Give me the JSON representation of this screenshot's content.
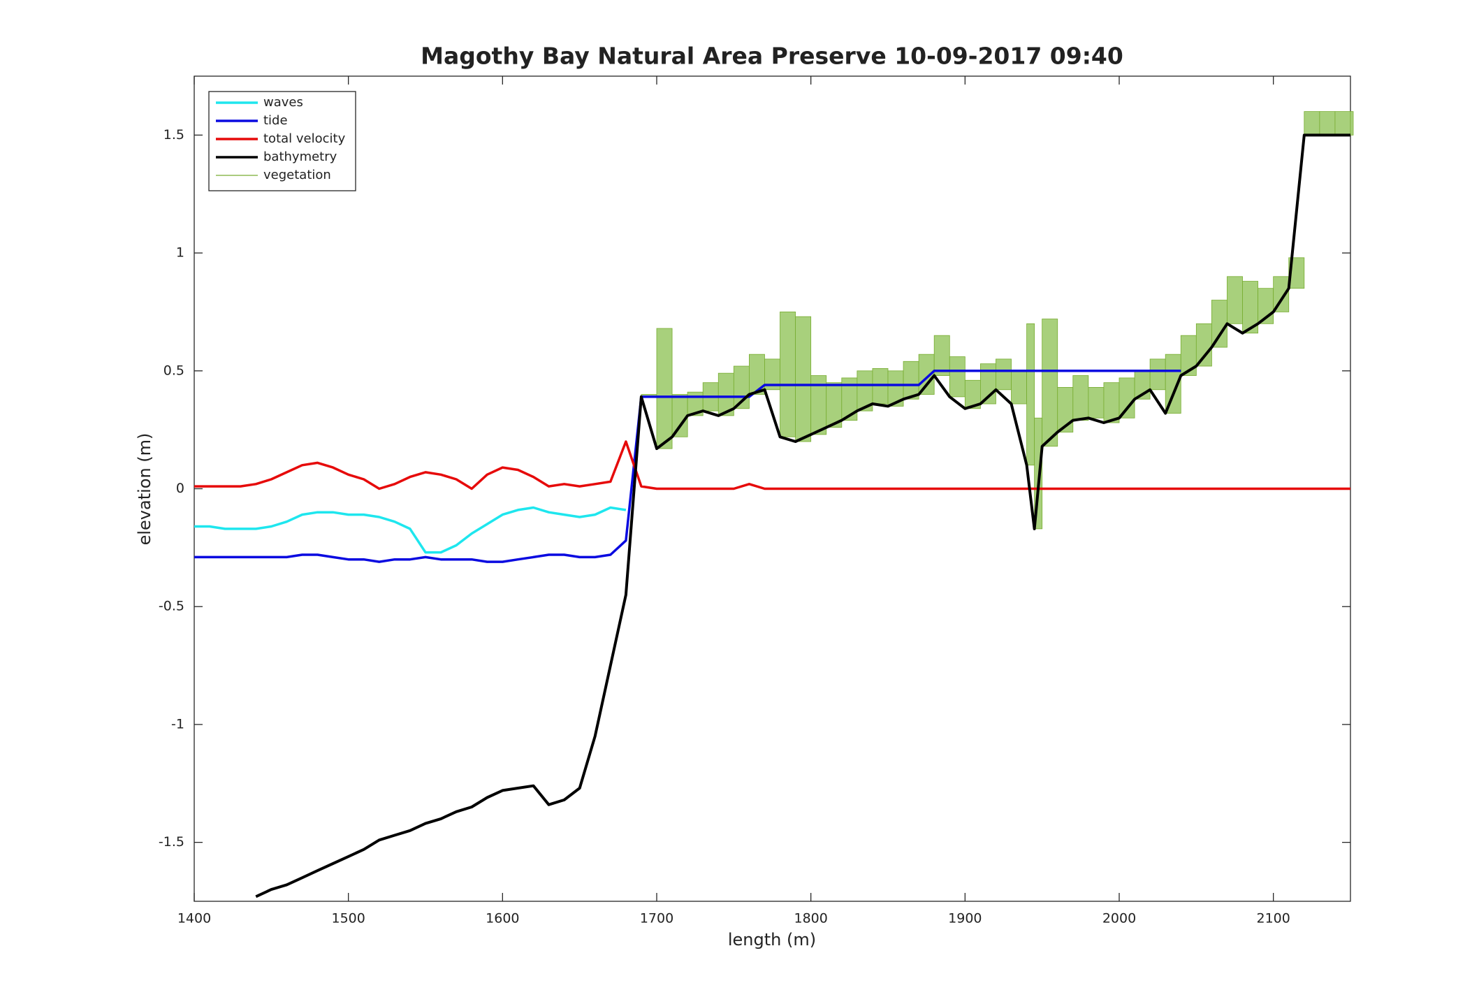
{
  "chart_data": {
    "type": "line",
    "title": "Magothy Bay Natural Area Preserve  10-09-2017 09:40",
    "x_label": "length (m)",
    "y_label": "elevation (m)",
    "xlim": [
      1400,
      2150
    ],
    "ylim": [
      -1.75,
      1.75
    ],
    "xticks": [
      1400,
      1500,
      1600,
      1700,
      1800,
      1900,
      2000,
      2100
    ],
    "yticks": [
      -1.5,
      -1,
      -0.5,
      0,
      0.5,
      1,
      1.5
    ],
    "legend": "top-left",
    "x": [
      1400,
      1410,
      1420,
      1430,
      1440,
      1450,
      1460,
      1470,
      1480,
      1490,
      1500,
      1510,
      1520,
      1530,
      1540,
      1550,
      1560,
      1570,
      1580,
      1590,
      1600,
      1610,
      1620,
      1630,
      1640,
      1650,
      1660,
      1670,
      1680,
      1690,
      1700,
      1710,
      1720,
      1730,
      1740,
      1750,
      1760,
      1770,
      1780,
      1790,
      1800,
      1810,
      1820,
      1830,
      1840,
      1850,
      1860,
      1870,
      1880,
      1890,
      1900,
      1910,
      1920,
      1930,
      1940,
      1945,
      1950,
      1960,
      1970,
      1980,
      1990,
      2000,
      2010,
      2020,
      2030,
      2040,
      2050,
      2060,
      2070,
      2080,
      2090,
      2100,
      2110,
      2120,
      2130,
      2140,
      2150
    ],
    "series": [
      {
        "name": "waves",
        "color": "#1ee6ee",
        "values": [
          -0.16,
          -0.16,
          -0.17,
          -0.17,
          -0.17,
          -0.16,
          -0.14,
          -0.11,
          -0.1,
          -0.1,
          -0.11,
          -0.11,
          -0.12,
          -0.14,
          -0.17,
          -0.27,
          -0.27,
          -0.24,
          -0.19,
          -0.15,
          -0.11,
          -0.09,
          -0.08,
          -0.1,
          -0.11,
          -0.12,
          -0.11,
          -0.08,
          -0.09,
          null,
          null,
          null,
          null,
          null,
          null,
          null,
          null,
          null,
          null,
          null,
          null,
          null,
          null,
          null,
          null,
          null,
          null,
          null,
          null,
          null,
          null,
          null,
          null,
          null,
          null,
          null,
          null,
          null,
          null,
          null,
          null,
          null,
          null,
          null,
          null,
          null,
          null,
          null,
          null,
          null,
          null,
          null,
          null,
          null,
          null,
          null,
          null
        ]
      },
      {
        "name": "tide",
        "color": "#0a0ae0",
        "values": [
          -0.29,
          -0.29,
          -0.29,
          -0.29,
          -0.29,
          -0.29,
          -0.29,
          -0.28,
          -0.28,
          -0.29,
          -0.3,
          -0.3,
          -0.31,
          -0.3,
          -0.3,
          -0.29,
          -0.3,
          -0.3,
          -0.3,
          -0.31,
          -0.31,
          -0.3,
          -0.29,
          -0.28,
          -0.28,
          -0.29,
          -0.29,
          -0.28,
          -0.22,
          0.39,
          0.39,
          0.39,
          0.39,
          0.39,
          0.39,
          0.39,
          0.39,
          0.44,
          0.44,
          0.44,
          0.44,
          0.44,
          0.44,
          0.44,
          0.44,
          0.44,
          0.44,
          0.44,
          0.5,
          0.5,
          0.5,
          0.5,
          0.5,
          0.5,
          0.5,
          0.5,
          0.5,
          0.5,
          0.5,
          0.5,
          0.5,
          0.5,
          0.5,
          0.5,
          0.5,
          0.5,
          null,
          null,
          null,
          null,
          null,
          null,
          null,
          null,
          null,
          null,
          null
        ]
      },
      {
        "name": "total velocity",
        "color": "#e60a0a",
        "values": [
          0.01,
          0.01,
          0.01,
          0.01,
          0.02,
          0.04,
          0.07,
          0.1,
          0.11,
          0.09,
          0.06,
          0.04,
          0.0,
          0.02,
          0.05,
          0.07,
          0.06,
          0.04,
          0.0,
          0.06,
          0.09,
          0.08,
          0.05,
          0.01,
          0.02,
          0.01,
          0.02,
          0.03,
          0.2,
          0.01,
          0,
          0,
          0,
          0,
          0,
          0,
          0.02,
          0,
          0,
          0,
          0,
          0,
          0,
          0,
          0,
          0,
          0,
          0,
          0,
          0,
          0,
          0,
          0,
          0,
          0,
          0,
          0,
          0,
          0,
          0,
          0,
          0,
          0,
          0,
          0,
          0,
          0,
          0,
          0,
          0,
          0,
          0,
          0,
          0,
          0,
          0,
          0
        ]
      },
      {
        "name": "bathymetry",
        "color": "#000000",
        "values": [
          null,
          null,
          null,
          null,
          -1.73,
          -1.7,
          -1.68,
          -1.65,
          -1.62,
          -1.59,
          -1.56,
          -1.53,
          -1.49,
          -1.47,
          -1.45,
          -1.42,
          -1.4,
          -1.37,
          -1.35,
          -1.31,
          -1.28,
          -1.27,
          -1.26,
          -1.34,
          -1.32,
          -1.27,
          -1.05,
          -0.75,
          -0.45,
          0.39,
          0.17,
          0.22,
          0.31,
          0.33,
          0.31,
          0.34,
          0.4,
          0.42,
          0.22,
          0.2,
          0.23,
          0.26,
          0.29,
          0.33,
          0.36,
          0.35,
          0.38,
          0.4,
          0.48,
          0.39,
          0.34,
          0.36,
          0.42,
          0.36,
          0.1,
          -0.17,
          0.18,
          0.24,
          0.29,
          0.3,
          0.28,
          0.3,
          0.38,
          0.42,
          0.32,
          0.48,
          0.52,
          0.6,
          0.7,
          0.66,
          0.7,
          0.75,
          0.85,
          1.5,
          1.5,
          1.5,
          1.5
        ]
      },
      {
        "name": "vegetation",
        "color": "#77ac30",
        "values": [
          null,
          null,
          null,
          null,
          null,
          null,
          null,
          null,
          null,
          null,
          null,
          null,
          null,
          null,
          null,
          null,
          null,
          null,
          null,
          null,
          null,
          null,
          null,
          null,
          null,
          null,
          null,
          null,
          null,
          0.4,
          0.68,
          0.4,
          0.41,
          0.45,
          0.49,
          0.52,
          0.57,
          0.55,
          0.75,
          0.73,
          0.48,
          0.45,
          0.47,
          0.5,
          0.51,
          0.5,
          0.54,
          0.57,
          0.65,
          0.56,
          0.46,
          0.53,
          0.55,
          0.5,
          0.7,
          0.3,
          0.72,
          0.43,
          0.48,
          0.43,
          0.45,
          0.47,
          0.5,
          0.55,
          0.57,
          0.65,
          0.7,
          0.8,
          0.9,
          0.88,
          0.85,
          0.9,
          0.98,
          1.6,
          1.6,
          1.6,
          1.6
        ]
      }
    ]
  }
}
